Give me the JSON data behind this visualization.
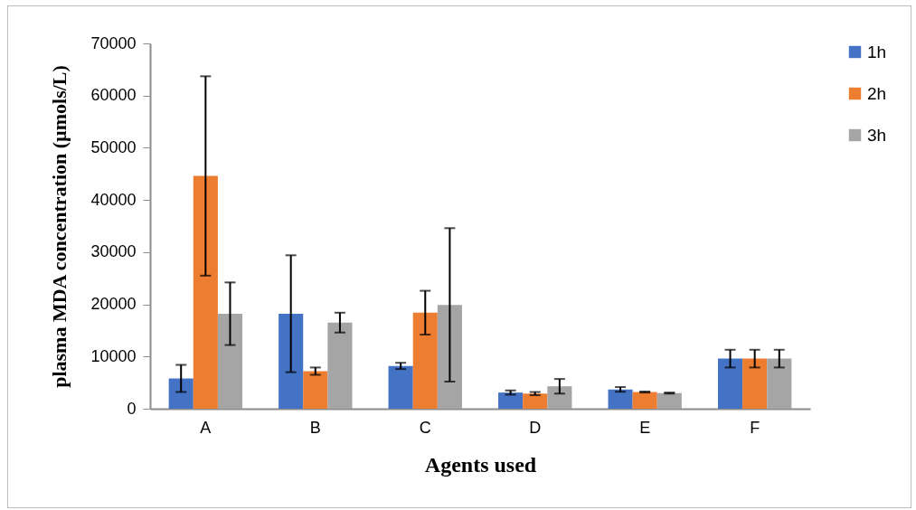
{
  "chart_data": {
    "type": "bar",
    "xlabel": "Agents used",
    "ylabel": "plasma MDA concentration (µmols/L)",
    "categories": [
      "A",
      "B",
      "C",
      "D",
      "E",
      "F"
    ],
    "ylim": [
      0,
      70000
    ],
    "yticks": [
      0,
      10000,
      20000,
      30000,
      40000,
      50000,
      60000,
      70000
    ],
    "grid": false,
    "legend": "right",
    "series": [
      {
        "name": "1h",
        "color": "#4472c4",
        "values": [
          5800,
          18200,
          8200,
          3100,
          3700,
          9600
        ],
        "errors": [
          2600,
          11200,
          600,
          400,
          450,
          1700
        ]
      },
      {
        "name": "2h",
        "color": "#ed7d31",
        "values": [
          44600,
          7200,
          18400,
          2900,
          3200,
          9600
        ],
        "errors": [
          19100,
          700,
          4200,
          300,
          100,
          1700
        ]
      },
      {
        "name": "3h",
        "color": "#a5a5a5",
        "values": [
          18200,
          16500,
          19900,
          4300,
          3000,
          9600
        ],
        "errors": [
          6000,
          1900,
          14700,
          1400,
          100,
          1700
        ]
      }
    ]
  }
}
